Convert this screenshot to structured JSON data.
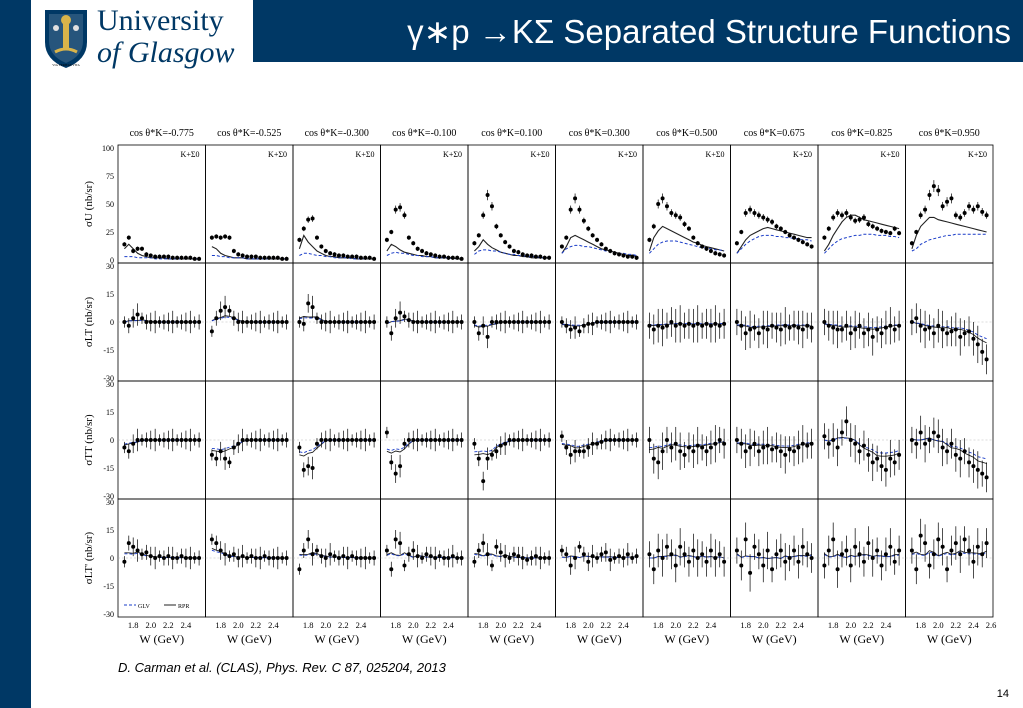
{
  "header": {
    "university_line1": "University",
    "university_line2": "of Glasgow",
    "crest_motto": "VIA VERITAS VITA",
    "slide_title": "γ∗p →KΣ Separated Structure Functions"
  },
  "citation": "D. Carman et al. (CLAS), Phys. Rev. C 87, 025204, 2013",
  "page_number": "14",
  "colors": {
    "brand": "#003865",
    "glv": "#1a3cc8",
    "rpr": "#222222"
  },
  "chart_data": {
    "type": "scatter",
    "column_labels": [
      "cos θ*K=-0.775",
      "cos θ*K=-0.525",
      "cos θ*K=-0.300",
      "cos θ*K=-0.100",
      "cos θ*K=0.100",
      "cos θ*K=0.300",
      "cos θ*K=0.500",
      "cos θ*K=0.675",
      "cos θ*K=0.825",
      "cos θ*K=0.950"
    ],
    "panel_tag": "K+Σ0",
    "rows": [
      {
        "ylabel": "σU (nb/sr)",
        "ylim": [
          0,
          100
        ],
        "yticks": [
          "100",
          "75",
          "50",
          "25",
          "0"
        ],
        "tick_values": [
          100,
          75,
          50,
          25,
          0
        ]
      },
      {
        "ylabel": "σLT (nb/sr)",
        "ylim": [
          -30,
          30
        ],
        "yticks": [
          "30",
          "15",
          "0",
          "-15",
          "-30"
        ],
        "tick_values": [
          30,
          15,
          0,
          -15,
          -30
        ]
      },
      {
        "ylabel": "σTT (nb/sr)",
        "ylim": [
          -30,
          30
        ],
        "yticks": [
          "30",
          "15",
          "0",
          "-15",
          "-30"
        ],
        "tick_values": [
          30,
          15,
          0,
          -15,
          -30
        ]
      },
      {
        "ylabel": "σLT' (nb/sr)",
        "ylim": [
          -30,
          30
        ],
        "yticks": [
          "30",
          "15",
          "0",
          "-15",
          "-30"
        ],
        "tick_values": [
          30,
          15,
          0,
          -15,
          -30
        ]
      }
    ],
    "xlabel": "W (GeV)",
    "xlim": [
      1.65,
      2.6
    ],
    "xticks": [
      "1.8",
      "2.0",
      "2.2",
      "2.4"
    ],
    "xtick_values": [
      1.8,
      2.0,
      2.2,
      2.4
    ],
    "last_column_extra_tick": "2.6",
    "legend": [
      {
        "name": "GLV",
        "style": "dash-dot",
        "color": "#1a3cc8"
      },
      {
        "name": "RPR",
        "style": "solid",
        "color": "#222222"
      }
    ],
    "w_points": [
      1.7,
      1.75,
      1.8,
      1.85,
      1.9,
      1.95,
      2.0,
      2.05,
      2.1,
      2.15,
      2.2,
      2.25,
      2.3,
      2.35,
      2.4,
      2.45,
      2.5,
      2.55
    ],
    "series": {
      "sigma_U": [
        [
          14,
          20,
          8,
          10,
          10,
          5,
          4,
          3,
          3,
          3,
          3,
          2,
          2,
          2,
          2,
          2,
          1,
          1
        ],
        [
          20,
          21,
          20,
          21,
          20,
          8,
          5,
          4,
          3,
          3,
          3,
          2,
          2,
          2,
          2,
          2,
          1,
          1
        ],
        [
          18,
          28,
          36,
          37,
          20,
          12,
          8,
          6,
          5,
          4,
          4,
          3,
          3,
          3,
          2,
          2,
          2,
          1
        ],
        [
          18,
          25,
          45,
          47,
          40,
          20,
          15,
          10,
          8,
          6,
          5,
          4,
          3,
          3,
          2,
          2,
          2,
          1
        ],
        [
          15,
          22,
          40,
          58,
          48,
          30,
          22,
          16,
          12,
          8,
          7,
          5,
          4,
          4,
          3,
          3,
          2,
          2
        ],
        [
          12,
          20,
          45,
          55,
          45,
          35,
          28,
          22,
          18,
          14,
          10,
          8,
          6,
          5,
          4,
          3,
          3,
          2
        ],
        [
          18,
          30,
          50,
          55,
          48,
          42,
          40,
          38,
          32,
          28,
          20,
          15,
          12,
          10,
          8,
          6,
          5,
          4
        ],
        [
          15,
          25,
          42,
          45,
          42,
          40,
          38,
          36,
          34,
          30,
          28,
          25,
          22,
          20,
          18,
          16,
          14,
          12
        ],
        [
          20,
          28,
          38,
          42,
          40,
          42,
          38,
          35,
          36,
          38,
          32,
          30,
          28,
          26,
          25,
          24,
          28,
          24
        ],
        [
          15,
          25,
          40,
          45,
          58,
          66,
          62,
          48,
          52,
          55,
          40,
          38,
          42,
          48,
          45,
          48,
          43,
          40
        ]
      ],
      "sigma_LT": [
        [
          0,
          -2,
          2,
          4,
          2,
          0,
          0,
          0,
          0,
          0,
          0,
          0,
          0,
          0,
          0,
          0,
          0,
          0
        ],
        [
          -5,
          2,
          6,
          8,
          6,
          2,
          0,
          0,
          0,
          0,
          0,
          0,
          0,
          0,
          0,
          0,
          0,
          0
        ],
        [
          0,
          -1,
          10,
          8,
          2,
          0,
          0,
          0,
          0,
          0,
          0,
          0,
          0,
          0,
          0,
          0,
          0,
          0
        ],
        [
          0,
          -6,
          2,
          5,
          3,
          1,
          0,
          0,
          0,
          0,
          0,
          0,
          0,
          0,
          0,
          0,
          0,
          0
        ],
        [
          0,
          -6,
          -2,
          -8,
          0,
          0,
          0,
          0,
          0,
          0,
          0,
          0,
          0,
          0,
          0,
          0,
          0,
          0
        ],
        [
          0,
          -2,
          -4,
          -3,
          -5,
          -2,
          -1,
          -1,
          0,
          0,
          0,
          0,
          0,
          0,
          0,
          0,
          0,
          0
        ],
        [
          -2,
          -4,
          -2,
          -3,
          -2,
          0,
          -2,
          -1,
          -2,
          -1,
          -2,
          -1,
          -2,
          -1,
          -2,
          -1,
          -2,
          -1
        ],
        [
          0,
          -2,
          -6,
          -4,
          -3,
          -6,
          -3,
          -4,
          -2,
          -3,
          -4,
          -2,
          -3,
          -2,
          -3,
          -4,
          -2,
          -3
        ],
        [
          0,
          -2,
          -3,
          -4,
          -4,
          -2,
          -6,
          -4,
          -2,
          -6,
          -4,
          -8,
          -4,
          -6,
          -3,
          -2,
          -4,
          -2
        ],
        [
          0,
          2,
          -2,
          -4,
          -3,
          -6,
          -2,
          -4,
          -6,
          -5,
          -4,
          -8,
          -6,
          -5,
          -9,
          -12,
          -16,
          -20
        ]
      ],
      "sigma_TT": [
        [
          -4,
          -6,
          -2,
          0,
          0,
          0,
          0,
          0,
          0,
          0,
          0,
          0,
          0,
          0,
          0,
          0,
          0,
          0
        ],
        [
          -8,
          -10,
          -6,
          -10,
          -12,
          -4,
          -2,
          0,
          0,
          0,
          0,
          0,
          0,
          0,
          0,
          0,
          0,
          0
        ],
        [
          -4,
          -16,
          -14,
          -15,
          -2,
          0,
          0,
          0,
          0,
          0,
          0,
          0,
          0,
          0,
          0,
          0,
          0,
          0
        ],
        [
          4,
          -12,
          -18,
          -14,
          -2,
          0,
          0,
          0,
          0,
          0,
          0,
          0,
          0,
          0,
          0,
          0,
          0,
          0
        ],
        [
          -2,
          -10,
          -22,
          -10,
          -8,
          -6,
          -3,
          -2,
          0,
          0,
          0,
          0,
          0,
          0,
          0,
          0,
          0,
          0
        ],
        [
          2,
          -4,
          -8,
          -6,
          -6,
          -6,
          -4,
          -2,
          -2,
          -1,
          0,
          0,
          0,
          0,
          0,
          0,
          0,
          0
        ],
        [
          0,
          -10,
          -12,
          -6,
          0,
          -4,
          -2,
          -6,
          -8,
          -4,
          -6,
          -3,
          -4,
          -6,
          -4,
          -2,
          0,
          -2
        ],
        [
          0,
          -2,
          -6,
          -4,
          -2,
          -6,
          -4,
          -3,
          -5,
          -4,
          -6,
          -8,
          -5,
          -6,
          -4,
          -2,
          -3,
          -2
        ],
        [
          2,
          -2,
          0,
          -4,
          4,
          10,
          0,
          -2,
          -6,
          -3,
          -8,
          -12,
          -10,
          -14,
          -16,
          -10,
          -12,
          -8
        ],
        [
          0,
          -2,
          4,
          -2,
          0,
          4,
          2,
          -4,
          -6,
          -2,
          -8,
          -10,
          -6,
          -12,
          -14,
          -16,
          -18,
          -20
        ]
      ],
      "sigma_LTp": [
        [
          -2,
          8,
          6,
          4,
          2,
          3,
          1,
          0,
          1,
          0,
          1,
          0,
          0,
          1,
          0,
          0,
          0,
          0
        ],
        [
          10,
          8,
          4,
          2,
          1,
          2,
          0,
          1,
          0,
          1,
          0,
          0,
          1,
          0,
          0,
          0,
          0,
          0
        ],
        [
          -6,
          4,
          10,
          2,
          4,
          1,
          0,
          2,
          1,
          0,
          1,
          0,
          1,
          0,
          0,
          0,
          0,
          0
        ],
        [
          4,
          -6,
          10,
          8,
          -4,
          2,
          4,
          1,
          0,
          2,
          1,
          0,
          1,
          0,
          0,
          1,
          0,
          0
        ],
        [
          -2,
          4,
          8,
          2,
          -4,
          6,
          3,
          1,
          0,
          2,
          1,
          0,
          -1,
          0,
          1,
          0,
          0,
          0
        ],
        [
          4,
          2,
          -4,
          0,
          6,
          2,
          -2,
          1,
          0,
          2,
          3,
          -1,
          0,
          1,
          0,
          2,
          0,
          1
        ],
        [
          2,
          -6,
          4,
          0,
          6,
          2,
          -4,
          6,
          2,
          -2,
          4,
          0,
          2,
          -2,
          4,
          0,
          2,
          -2
        ],
        [
          4,
          -4,
          10,
          -8,
          6,
          2,
          -4,
          4,
          -6,
          2,
          4,
          -2,
          0,
          4,
          -2,
          6,
          2,
          0
        ],
        [
          -4,
          4,
          10,
          -6,
          2,
          4,
          -4,
          6,
          2,
          -2,
          8,
          0,
          4,
          -4,
          2,
          6,
          -2,
          4
        ],
        [
          4,
          -6,
          12,
          8,
          -4,
          2,
          10,
          6,
          -6,
          4,
          8,
          2,
          10,
          4,
          -2,
          6,
          2,
          8
        ]
      ]
    },
    "curves": {
      "sigma_U": {
        "RPR": [
          [
            10,
            14,
            10,
            6,
            4,
            3,
            2,
            2,
            2,
            2,
            1,
            1,
            1,
            1,
            1,
            1,
            1,
            1
          ],
          [
            12,
            10,
            6,
            4,
            3,
            2,
            2,
            2,
            1,
            1,
            1,
            1,
            1,
            1,
            1,
            1,
            1,
            1
          ],
          [
            10,
            22,
            16,
            12,
            8,
            6,
            4,
            3,
            3,
            2,
            2,
            2,
            2,
            1,
            1,
            1,
            1,
            1
          ],
          [
            8,
            14,
            12,
            9,
            7,
            6,
            5,
            4,
            4,
            3,
            3,
            2,
            2,
            2,
            2,
            2,
            1,
            1
          ],
          [
            8,
            12,
            18,
            14,
            11,
            9,
            7,
            6,
            5,
            4,
            4,
            3,
            3,
            2,
            2,
            2,
            2,
            2
          ],
          [
            6,
            12,
            20,
            22,
            20,
            18,
            16,
            14,
            12,
            10,
            9,
            8,
            7,
            6,
            5,
            4,
            4,
            3
          ],
          [
            8,
            20,
            26,
            30,
            28,
            26,
            24,
            22,
            20,
            18,
            16,
            15,
            13,
            12,
            11,
            10,
            9,
            8
          ],
          [
            6,
            12,
            18,
            22,
            24,
            26,
            28,
            29,
            28,
            27,
            26,
            25,
            24,
            23,
            22,
            21,
            20,
            20
          ],
          [
            8,
            14,
            22,
            28,
            34,
            38,
            40,
            40,
            38,
            36,
            35,
            34,
            33,
            32,
            31,
            30,
            29,
            28
          ],
          [
            10,
            22,
            30,
            34,
            38,
            38,
            36,
            35,
            34,
            33,
            32,
            31,
            30,
            29,
            28,
            27,
            26,
            25
          ]
        ],
        "GLV": [
          [
            3,
            3,
            3,
            2,
            2,
            2,
            2,
            1,
            1,
            1,
            1,
            1,
            1,
            1,
            1,
            1,
            1,
            1
          ],
          [
            4,
            4,
            3,
            3,
            2,
            2,
            2,
            2,
            1,
            1,
            1,
            1,
            1,
            1,
            1,
            1,
            1,
            1
          ],
          [
            4,
            6,
            6,
            5,
            4,
            4,
            3,
            3,
            2,
            2,
            2,
            2,
            1,
            1,
            1,
            1,
            1,
            1
          ],
          [
            4,
            6,
            7,
            6,
            6,
            5,
            4,
            4,
            3,
            3,
            3,
            2,
            2,
            2,
            2,
            1,
            1,
            1
          ],
          [
            5,
            8,
            9,
            9,
            8,
            8,
            7,
            6,
            5,
            5,
            4,
            4,
            3,
            3,
            3,
            2,
            2,
            2
          ],
          [
            6,
            10,
            12,
            13,
            13,
            12,
            12,
            11,
            10,
            9,
            8,
            8,
            7,
            6,
            6,
            5,
            5,
            4
          ],
          [
            6,
            10,
            14,
            16,
            17,
            17,
            17,
            16,
            15,
            14,
            13,
            12,
            11,
            11,
            10,
            9,
            9,
            8
          ],
          [
            6,
            10,
            14,
            17,
            19,
            21,
            22,
            22,
            22,
            21,
            21,
            20,
            20,
            19,
            19,
            18,
            18,
            17
          ],
          [
            6,
            10,
            14,
            17,
            19,
            20,
            21,
            22,
            22,
            23,
            23,
            23,
            22,
            22,
            22,
            21,
            21,
            20
          ],
          [
            8,
            10,
            14,
            16,
            18,
            19,
            20,
            21,
            22,
            22,
            23,
            23,
            23,
            23,
            23,
            23,
            23,
            23
          ]
        ]
      }
    }
  }
}
